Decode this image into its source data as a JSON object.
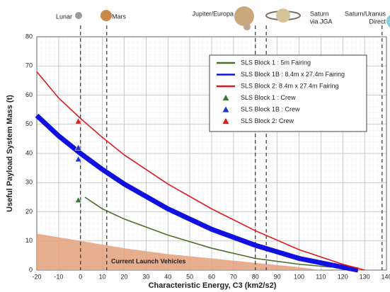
{
  "chart_data": {
    "type": "line",
    "xlabel": "Characteristic Energy, C3 (km2/s2)",
    "ylabel": "Useful Payload System Mass (t)",
    "xlim": [
      -20,
      140
    ],
    "ylim": [
      0,
      80
    ],
    "xticks": [
      -20,
      -10,
      0,
      10,
      20,
      30,
      40,
      50,
      60,
      70,
      80,
      90,
      100,
      110,
      120,
      130,
      140
    ],
    "yticks": [
      0,
      10,
      20,
      30,
      40,
      50,
      60,
      70,
      80
    ],
    "grid": true,
    "minor_grid": true,
    "legend": "upper right",
    "area": {
      "name": "Current Launch Vehicles",
      "color": "#e3a07c",
      "x": [
        -20,
        0,
        20,
        40,
        60,
        80,
        100,
        110
      ],
      "values": [
        12.5,
        10,
        7.5,
        5.5,
        4,
        2.5,
        1,
        0
      ]
    },
    "series": [
      {
        "name": "SLS Block 1 : 5m Fairing",
        "kind": "line",
        "color": "#4f6b2a",
        "x": [
          2,
          10,
          20,
          40,
          60,
          80,
          100,
          115
        ],
        "values": [
          25,
          21,
          17.5,
          12,
          7.5,
          4,
          2,
          1
        ]
      },
      {
        "name": "SLS Block 1B : 8.4m x 27.4m Fairing",
        "kind": "line",
        "color": "#1010e0",
        "x": [
          -20,
          -10,
          0,
          10,
          20,
          40,
          60,
          80,
          100,
          120,
          127
        ],
        "values": [
          53,
          46,
          40,
          34.5,
          29.5,
          21,
          14,
          8.5,
          4,
          1,
          0
        ]
      },
      {
        "name": "SLS Block 2: 8.4m x 27.4m Fairing",
        "kind": "line",
        "color": "#e01818",
        "x": [
          -20,
          -10,
          0,
          10,
          20,
          40,
          60,
          80,
          100,
          120,
          130
        ],
        "values": [
          68,
          59,
          52,
          45.5,
          39.5,
          29.5,
          21,
          13.5,
          7,
          2,
          0
        ]
      },
      {
        "name": "SLS Block 1 : Crew",
        "kind": "triangle",
        "color": "#2e7d32",
        "x": [
          -1
        ],
        "values": [
          24
        ]
      },
      {
        "name": "SLS Block 1B : Crew",
        "kind": "triangle",
        "color": "#1f2fd8",
        "x": [
          -1,
          -1
        ],
        "values": [
          42,
          38
        ]
      },
      {
        "name": "SLS Block 2: Crew",
        "kind": "triangle",
        "color": "#d82020",
        "x": [
          -1
        ],
        "values": [
          51
        ]
      }
    ],
    "markers": [
      {
        "label": [
          "Lunar"
        ],
        "x": 0
      },
      {
        "label": [
          "Mars"
        ],
        "x": 12
      },
      {
        "label": [
          "Jupiter/Europa"
        ],
        "x": 80
      },
      {
        "label": [
          "Saturn",
          "via JGA"
        ],
        "x": 85
      },
      {
        "label": [
          "Saturn/Uranus",
          "Direct"
        ],
        "x": 138
      }
    ]
  }
}
